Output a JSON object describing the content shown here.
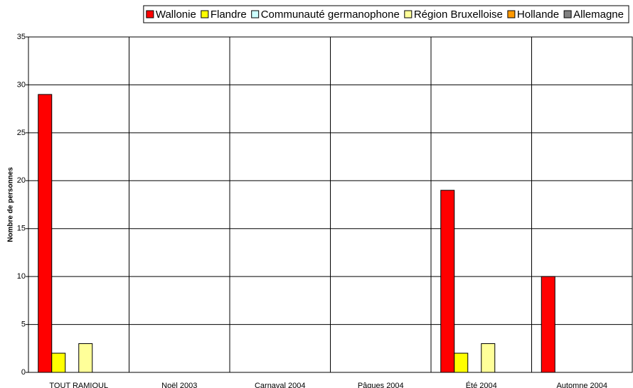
{
  "chart_data": {
    "type": "bar",
    "y_label": "Nombre de personnes",
    "categories": [
      "TOUT RAMIOUL",
      "Noël 2003",
      "Carnaval 2004",
      "Pâques 2004",
      "Été 2004",
      "Automne 2004"
    ],
    "series": [
      {
        "name": "Wallonie",
        "color": "#ff0000",
        "values": [
          29,
          0,
          0,
          0,
          19,
          10
        ]
      },
      {
        "name": "Flandre",
        "color": "#ffff00",
        "values": [
          2,
          0,
          0,
          0,
          2,
          0
        ]
      },
      {
        "name": "Communauté germanophone",
        "color": "#ccffff",
        "values": [
          0,
          0,
          0,
          0,
          0,
          0
        ]
      },
      {
        "name": "Région Bruxelloise",
        "color": "#ffff99",
        "values": [
          3,
          0,
          0,
          0,
          3,
          0
        ]
      },
      {
        "name": "Hollande",
        "color": "#ff9900",
        "values": [
          0,
          0,
          0,
          0,
          0,
          0
        ]
      },
      {
        "name": "Allemagne",
        "color": "#808080",
        "values": [
          0,
          0,
          0,
          0,
          0,
          0
        ]
      }
    ],
    "ylim": [
      0,
      35
    ],
    "yticks": [
      0,
      5,
      10,
      15,
      20,
      25,
      30,
      35
    ],
    "grid": true,
    "legend": "top"
  }
}
